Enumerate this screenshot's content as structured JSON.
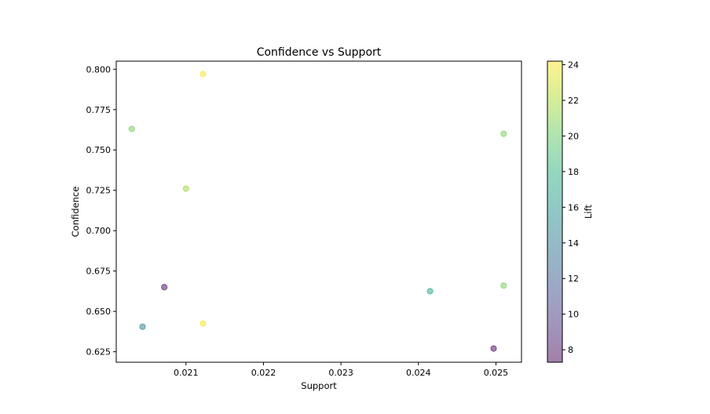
{
  "chart_data": {
    "type": "scatter",
    "title": "Confidence vs Support",
    "xlabel": "Support",
    "ylabel": "Confidence",
    "xlim": [
      0.0201,
      0.02533
    ],
    "ylim": [
      0.6185,
      0.805
    ],
    "xticks": [
      0.021,
      0.022,
      0.023,
      0.024,
      0.025
    ],
    "xtick_labels": [
      "0.021",
      "0.022",
      "0.023",
      "0.024",
      "0.025"
    ],
    "yticks": [
      0.625,
      0.65,
      0.675,
      0.7,
      0.725,
      0.75,
      0.775,
      0.8
    ],
    "ytick_labels": [
      "0.625",
      "0.650",
      "0.675",
      "0.700",
      "0.725",
      "0.750",
      "0.775",
      "0.800"
    ],
    "grid": false,
    "colormap": "viridis",
    "marker_alpha": 0.5,
    "points": [
      {
        "support": 0.02122,
        "confidence": 0.797,
        "lift": 24.0
      },
      {
        "support": 0.0203,
        "confidence": 0.763,
        "lift": 20.5
      },
      {
        "support": 0.021,
        "confidence": 0.726,
        "lift": 21.5
      },
      {
        "support": 0.02072,
        "confidence": 0.665,
        "lift": 7.5
      },
      {
        "support": 0.02044,
        "confidence": 0.6405,
        "lift": 14.5
      },
      {
        "support": 0.02122,
        "confidence": 0.6425,
        "lift": 24.0
      },
      {
        "support": 0.02415,
        "confidence": 0.6625,
        "lift": 17.0
      },
      {
        "support": 0.0251,
        "confidence": 0.76,
        "lift": 20.5
      },
      {
        "support": 0.0251,
        "confidence": 0.666,
        "lift": 20.5
      },
      {
        "support": 0.02497,
        "confidence": 0.627,
        "lift": 7.5
      }
    ],
    "colorbar": {
      "label": "Lift",
      "min": 7.3,
      "max": 24.2,
      "ticks": [
        8,
        10,
        12,
        14,
        16,
        18,
        20,
        22,
        24
      ],
      "tick_labels": [
        "8",
        "10",
        "12",
        "14",
        "16",
        "18",
        "20",
        "22",
        "24"
      ]
    }
  }
}
